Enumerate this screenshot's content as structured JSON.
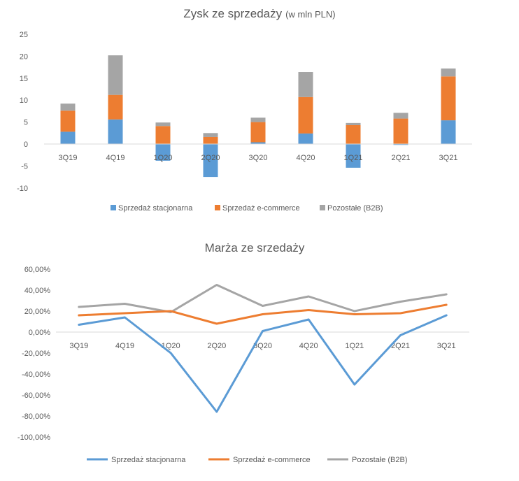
{
  "chart_data": [
    {
      "type": "bar",
      "stacked": true,
      "title": "Zysk ze sprzedaży",
      "subtitle": "(w mln PLN)",
      "categories": [
        "3Q19",
        "4Q19",
        "1Q20",
        "2Q20",
        "3Q20",
        "4Q20",
        "1Q21",
        "2Q21",
        "3Q21"
      ],
      "series": [
        {
          "name": "Sprzedaż stacjonarna",
          "color": "#5B9BD5",
          "values": [
            2.8,
            5.6,
            -3.8,
            -7.5,
            0.4,
            2.4,
            -5.4,
            -0.2,
            5.4
          ]
        },
        {
          "name": "Sprzedaż e-commerce",
          "color": "#ED7D31",
          "values": [
            4.8,
            5.6,
            4.1,
            1.6,
            4.6,
            8.3,
            4.3,
            5.8,
            10.0
          ]
        },
        {
          "name": "Pozostałe (B2B)",
          "color": "#A5A5A5",
          "values": [
            1.6,
            9.0,
            0.8,
            0.9,
            1.0,
            5.7,
            0.5,
            1.3,
            1.8
          ]
        }
      ],
      "yticks": [
        "25",
        "20",
        "15",
        "10",
        "5",
        "0",
        "-5",
        "-10"
      ],
      "ylim": [
        -10,
        25
      ],
      "legend_position": "bottom",
      "grid": false
    },
    {
      "type": "line",
      "title": "Marża ze srzedaży",
      "categories": [
        "3Q19",
        "4Q19",
        "1Q20",
        "2Q20",
        "3Q20",
        "4Q20",
        "1Q21",
        "2Q21",
        "3Q21"
      ],
      "series": [
        {
          "name": "Sprzedaż stacjonarna",
          "color": "#5B9BD5",
          "values": [
            7,
            14,
            -20,
            -76,
            1,
            12,
            -50,
            -3,
            16
          ]
        },
        {
          "name": "Sprzedaż e-commerce",
          "color": "#ED7D31",
          "values": [
            16,
            18,
            20,
            8,
            17,
            21,
            17,
            18,
            26
          ]
        },
        {
          "name": "Pozostałe (B2B)",
          "color": "#A5A5A5",
          "values": [
            24,
            27,
            19,
            45,
            25,
            34,
            20,
            29,
            36
          ]
        }
      ],
      "yticks": [
        "60,00%",
        "40,00%",
        "20,00%",
        "0,00%",
        "-20,00%",
        "-40,00%",
        "-60,00%",
        "-80,00%",
        "-100,00%"
      ],
      "ylim": [
        -100,
        60
      ],
      "legend_position": "bottom",
      "grid": false
    }
  ]
}
